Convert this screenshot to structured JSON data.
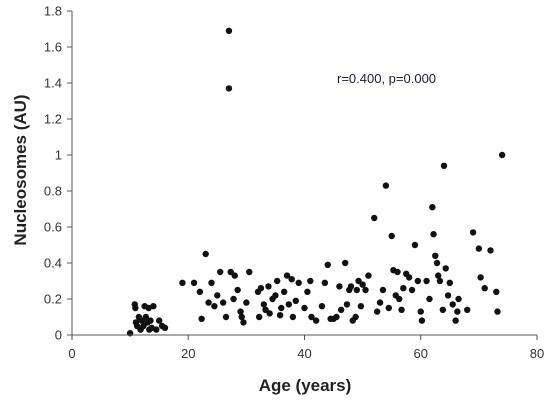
{
  "chart_data": {
    "type": "scatter",
    "title": "",
    "xlabel": "Age (years)",
    "ylabel": "Nucleosomes (AU)",
    "annotation": "r=0.400, p=0.000",
    "xlim": [
      0,
      80
    ],
    "ylim": [
      0,
      1.8
    ],
    "xticks": [
      0,
      20,
      40,
      60,
      80
    ],
    "yticks": [
      0,
      0.2,
      0.4,
      0.6,
      0.8,
      1,
      1.2,
      1.4,
      1.6,
      1.8
    ],
    "grid": false,
    "marker_color": "#111111",
    "points": [
      [
        10,
        0.01
      ],
      [
        10.8,
        0.17
      ],
      [
        10.9,
        0.15
      ],
      [
        11.0,
        0.07
      ],
      [
        11.2,
        0.05
      ],
      [
        11.5,
        0.1
      ],
      [
        11.8,
        0.03
      ],
      [
        12.0,
        0.08
      ],
      [
        12.3,
        0.05
      ],
      [
        12.5,
        0.16
      ],
      [
        12.7,
        0.1
      ],
      [
        13.0,
        0.07
      ],
      [
        13.2,
        0.15
      ],
      [
        13.3,
        0.03
      ],
      [
        13.5,
        0.08
      ],
      [
        13.7,
        0.04
      ],
      [
        14.0,
        0.16
      ],
      [
        14.5,
        0.03
      ],
      [
        15.0,
        0.08
      ],
      [
        15.5,
        0.05
      ],
      [
        16.0,
        0.04
      ],
      [
        19,
        0.29
      ],
      [
        21,
        0.29
      ],
      [
        22,
        0.24
      ],
      [
        22.3,
        0.09
      ],
      [
        23,
        0.45
      ],
      [
        23.5,
        0.18
      ],
      [
        24,
        0.29
      ],
      [
        24.5,
        0.16
      ],
      [
        25,
        0.22
      ],
      [
        25.5,
        0.35
      ],
      [
        26,
        0.18
      ],
      [
        26.5,
        0.1
      ],
      [
        27,
        1.69
      ],
      [
        27,
        1.37
      ],
      [
        27.3,
        0.35
      ],
      [
        27.8,
        0.2
      ],
      [
        28,
        0.33
      ],
      [
        28.5,
        0.25
      ],
      [
        29,
        0.13
      ],
      [
        29.2,
        0.1
      ],
      [
        29.5,
        0.07
      ],
      [
        30,
        0.18
      ],
      [
        30.5,
        0.35
      ],
      [
        32,
        0.24
      ],
      [
        32.2,
        0.1
      ],
      [
        32.5,
        0.26
      ],
      [
        33,
        0.17
      ],
      [
        33.3,
        0.14
      ],
      [
        33.8,
        0.27
      ],
      [
        34,
        0.12
      ],
      [
        34.5,
        0.2
      ],
      [
        35,
        0.22
      ],
      [
        35.3,
        0.3
      ],
      [
        35.8,
        0.11
      ],
      [
        36,
        0.15
      ],
      [
        36.5,
        0.24
      ],
      [
        37,
        0.33
      ],
      [
        37.3,
        0.17
      ],
      [
        37.8,
        0.31
      ],
      [
        38,
        0.1
      ],
      [
        38.5,
        0.19
      ],
      [
        39,
        0.29
      ],
      [
        40,
        0.15
      ],
      [
        40.5,
        0.24
      ],
      [
        41,
        0.3
      ],
      [
        41.2,
        0.1
      ],
      [
        42,
        0.08
      ],
      [
        43,
        0.16
      ],
      [
        43.5,
        0.29
      ],
      [
        44,
        0.39
      ],
      [
        44.5,
        0.09
      ],
      [
        45,
        0.09
      ],
      [
        45.5,
        0.1
      ],
      [
        46,
        0.27
      ],
      [
        46.3,
        0.14
      ],
      [
        47,
        0.4
      ],
      [
        47.3,
        0.17
      ],
      [
        47.7,
        0.25
      ],
      [
        48,
        0.27
      ],
      [
        48.3,
        0.08
      ],
      [
        48.8,
        0.1
      ],
      [
        49,
        0.25
      ],
      [
        49.3,
        0.3
      ],
      [
        49.7,
        0.16
      ],
      [
        50,
        0.28
      ],
      [
        50.5,
        0.25
      ],
      [
        51,
        0.33
      ],
      [
        52,
        0.65
      ],
      [
        52.5,
        0.13
      ],
      [
        53,
        0.18
      ],
      [
        53.5,
        0.25
      ],
      [
        54,
        0.83
      ],
      [
        54.5,
        0.15
      ],
      [
        55,
        0.55
      ],
      [
        55.3,
        0.36
      ],
      [
        55.7,
        0.22
      ],
      [
        56,
        0.35
      ],
      [
        56.3,
        0.2
      ],
      [
        56.7,
        0.14
      ],
      [
        57,
        0.26
      ],
      [
        57.5,
        0.34
      ],
      [
        58,
        0.32
      ],
      [
        58.5,
        0.25
      ],
      [
        59,
        0.5
      ],
      [
        59.5,
        0.3
      ],
      [
        60,
        0.13
      ],
      [
        60.2,
        0.08
      ],
      [
        61,
        0.3
      ],
      [
        61.5,
        0.2
      ],
      [
        62,
        0.71
      ],
      [
        62.2,
        0.56
      ],
      [
        62.5,
        0.44
      ],
      [
        62.8,
        0.4
      ],
      [
        63,
        0.33
      ],
      [
        63.3,
        0.3
      ],
      [
        63.8,
        0.14
      ],
      [
        64,
        0.94
      ],
      [
        64.3,
        0.37
      ],
      [
        64.7,
        0.22
      ],
      [
        65,
        0.29
      ],
      [
        65.5,
        0.17
      ],
      [
        66,
        0.08
      ],
      [
        66.3,
        0.13
      ],
      [
        66.5,
        0.2
      ],
      [
        68,
        0.14
      ],
      [
        69,
        0.57
      ],
      [
        70,
        0.48
      ],
      [
        70.3,
        0.32
      ],
      [
        71,
        0.26
      ],
      [
        72,
        0.47
      ],
      [
        73,
        0.24
      ],
      [
        73.2,
        0.13
      ],
      [
        74,
        1.0
      ]
    ]
  }
}
